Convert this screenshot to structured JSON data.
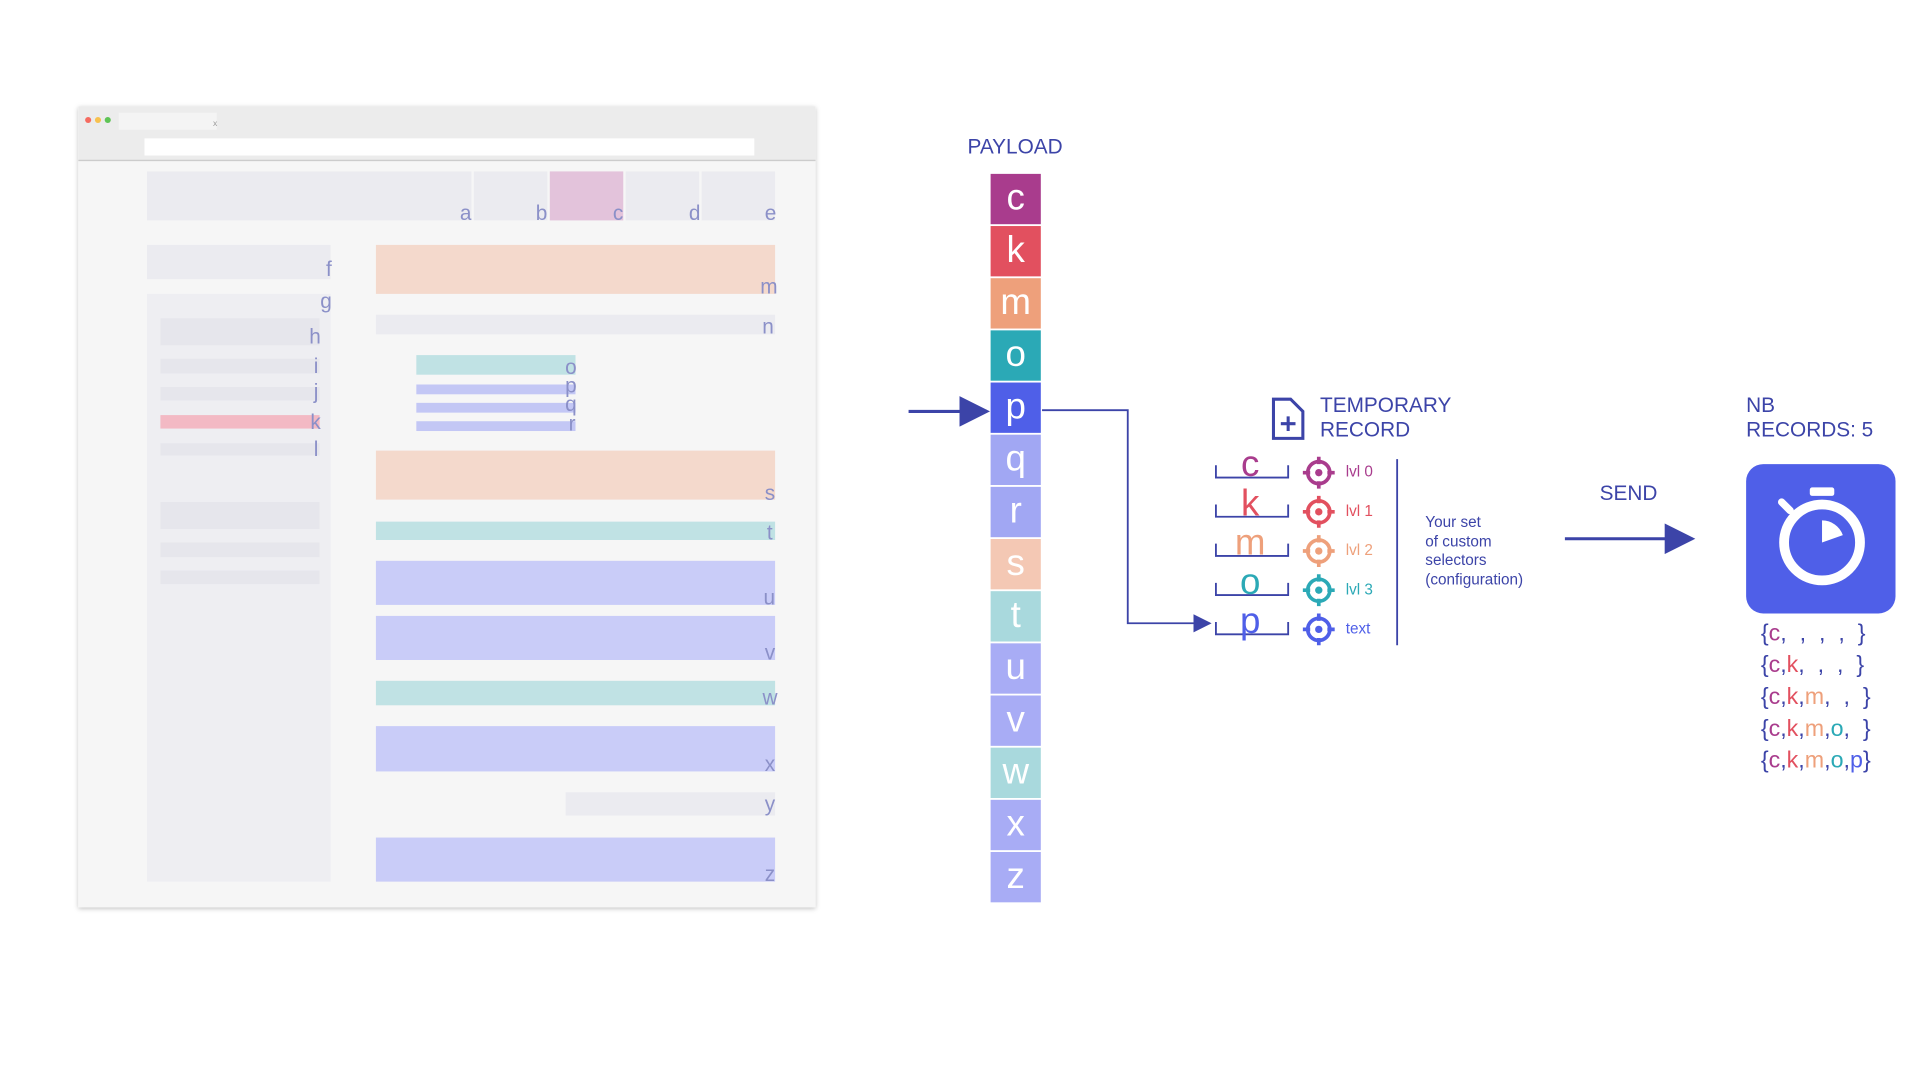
{
  "mockup": {
    "tab": "x",
    "labels": [
      "a",
      "b",
      "c",
      "d",
      "e",
      "f",
      "g",
      "h",
      "i",
      "j",
      "k",
      "l",
      "m",
      "n",
      "o",
      "p",
      "q",
      "r",
      "s",
      "t",
      "u",
      "v",
      "w",
      "x",
      "y",
      "z"
    ]
  },
  "payload": {
    "title": "PAYLOAD",
    "items": [
      {
        "letter": "c",
        "color": "#a93c8d"
      },
      {
        "letter": "k",
        "color": "#e2505f"
      },
      {
        "letter": "m",
        "color": "#eea07b"
      },
      {
        "letter": "o",
        "color": "#2ba9b6"
      },
      {
        "letter": "p",
        "color": "#4f5fe8"
      },
      {
        "letter": "q",
        "color": "#a1a7f3"
      },
      {
        "letter": "r",
        "color": "#a1a7f3"
      },
      {
        "letter": "s",
        "color": "#f4c8b4"
      },
      {
        "letter": "t",
        "color": "#a9d9dd"
      },
      {
        "letter": "u",
        "color": "#a8acf5"
      },
      {
        "letter": "v",
        "color": "#a8acf5"
      },
      {
        "letter": "w",
        "color": "#a9d9dd"
      },
      {
        "letter": "x",
        "color": "#a8acf5"
      },
      {
        "letter": "z",
        "color": "#a8acf5"
      }
    ]
  },
  "temporary_record": {
    "title": [
      "TEMPORARY",
      "RECORD"
    ],
    "rows": [
      {
        "letter": "c",
        "label": "lvl 0",
        "color": "#a93c8d"
      },
      {
        "letter": "k",
        "label": "lvl 1",
        "color": "#e2505f"
      },
      {
        "letter": "m",
        "label": "lvl 2",
        "color": "#eea07b"
      },
      {
        "letter": "o",
        "label": "lvl 3",
        "color": "#2ba9b6"
      },
      {
        "letter": "p",
        "label": "text",
        "color": "#4f5fe8"
      }
    ],
    "note": [
      "Your set",
      "of custom",
      "selectors",
      "(configuration)"
    ]
  },
  "send": "SEND",
  "nb_records": {
    "title": [
      "NB",
      "RECORDS: 5"
    ],
    "records": [
      [
        "{",
        "c",
        ",  ,  ,  ,  }"
      ],
      [
        "{",
        "c",
        ",",
        "k",
        ",  ,  ,  }"
      ],
      [
        "{",
        "c",
        ",",
        "k",
        ",",
        "m",
        ",  ,  }"
      ],
      [
        "{",
        "c",
        ",",
        "k",
        ",",
        "m",
        ",",
        "o",
        ",  }"
      ],
      [
        "{",
        "c",
        ",",
        "k",
        ",",
        "m",
        ",",
        "o",
        ",",
        "p",
        "}"
      ]
    ]
  }
}
